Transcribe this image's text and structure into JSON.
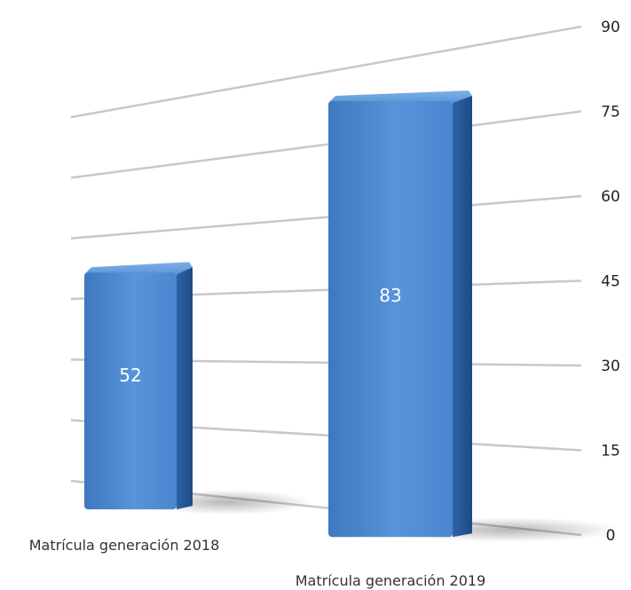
{
  "chart_data": {
    "type": "bar",
    "categories": [
      "Matrícula generación 2018",
      "Matrícula generación 2019"
    ],
    "values": [
      52,
      83
    ],
    "data_labels": [
      "52",
      "83"
    ],
    "yticks": [
      "0",
      "15",
      "30",
      "45",
      "60",
      "75",
      "90"
    ],
    "ylim": [
      0,
      90
    ],
    "grid": true,
    "axis_position": "right",
    "colors": {
      "bar": "#4a86cf",
      "bar_dark": "#2b5a97",
      "bar_light": "#6aa2e0",
      "grid": "#c8c8c8"
    },
    "title": "",
    "xlabel": "",
    "ylabel": ""
  }
}
